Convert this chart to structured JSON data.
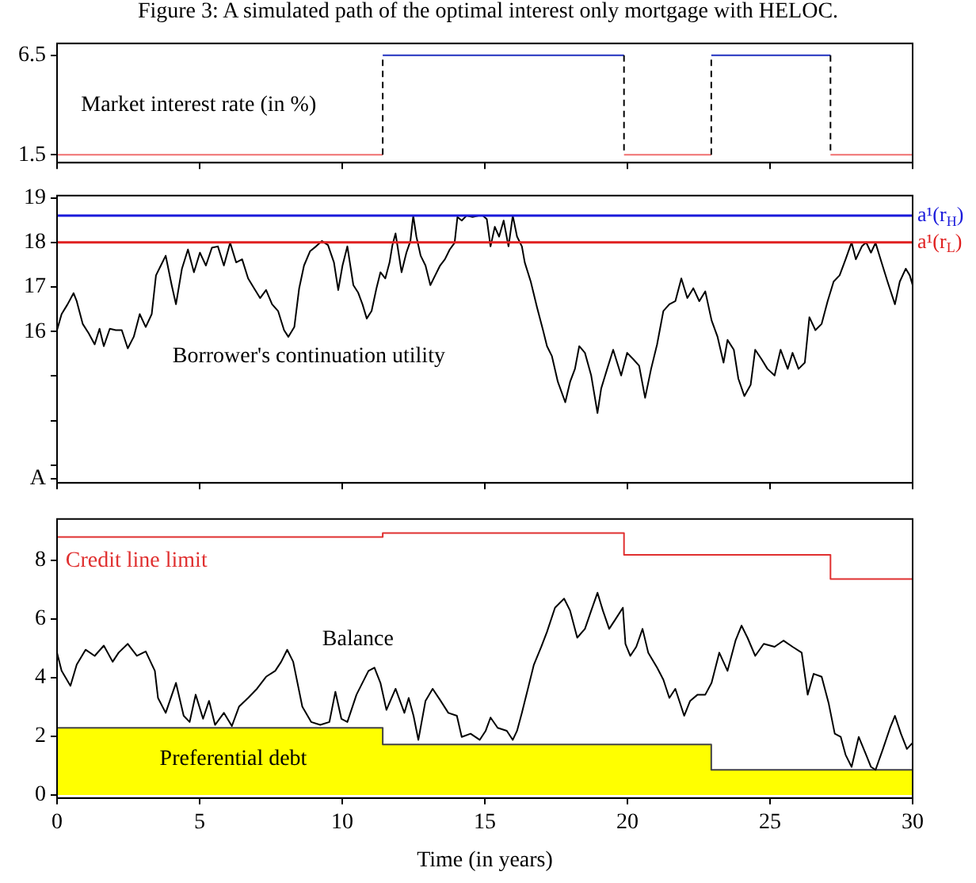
{
  "chart_data": [
    {
      "type": "line",
      "title": "Figure 3: A simulated path of the optimal interest only mortgage with HELOC.",
      "annotations": [
        "Market interest rate (in %)"
      ],
      "xlim": [
        0,
        30
      ],
      "xticks": [
        0,
        5,
        10,
        15,
        20,
        25,
        30
      ],
      "ylim": [
        1.1,
        7.1
      ],
      "yticks": [
        1.5,
        6.5
      ],
      "tick_labels": "y",
      "grid": false,
      "series": [
        {
          "color": "#f07070",
          "x": [
            0,
            11.42,
            15,
            19.88,
            22.94,
            25,
            27.12,
            30
          ],
          "values": [
            1.5,
            1.5,
            null,
            1.5,
            1.5,
            null,
            1.5,
            1.5
          ]
        },
        {
          "color": "#2030c0",
          "x": [
            11.42,
            19.88,
            21,
            22.94,
            27.12
          ],
          "values": [
            6.5,
            6.5,
            null,
            6.5,
            6.5
          ]
        },
        {
          "color": "#000000",
          "line_style": "dashed",
          "x": [
            11.42,
            11.42,
            15,
            19.88,
            19.88,
            21,
            22.94,
            22.94,
            25,
            27.12,
            27.12
          ],
          "values": [
            1.5,
            6.5,
            null,
            6.5,
            1.5,
            null,
            1.5,
            6.5,
            null,
            6.5,
            1.5
          ]
        }
      ]
    },
    {
      "type": "line",
      "xlim": [
        0,
        30
      ],
      "xticks": [
        0,
        5,
        10,
        15,
        20,
        25,
        30
      ],
      "ylim": [
        12.6,
        19.05
      ],
      "yticks": [
        {
          "value": 12.7,
          "label": "A"
        },
        {
          "value": 13,
          "label": null
        },
        {
          "value": 14,
          "label": null
        },
        {
          "value": 15,
          "label": null
        },
        16,
        17,
        18,
        19
      ],
      "tick_labels": "y",
      "grid": false,
      "ref_lines": [
        {
          "axis": "y",
          "value": 18.6,
          "label": "a¹(r$_{H}$)",
          "color": "#1a1adb"
        },
        {
          "axis": "y",
          "value": 18.0,
          "label": "a¹(r$_{L}$)",
          "color": "#e02020"
        }
      ],
      "series": [
        {
          "name": "Borrower's continuation utility",
          "color": "#000000",
          "x": [
            0,
            0.16,
            0.37,
            0.58,
            0.69,
            0.9,
            1.11,
            1.32,
            1.49,
            1.64,
            1.85,
            2.06,
            2.27,
            2.48,
            2.69,
            2.9,
            3.11,
            3.32,
            3.47,
            3.64,
            3.81,
            4.02,
            4.17,
            4.38,
            4.59,
            4.8,
            5.01,
            5.22,
            5.43,
            5.64,
            5.85,
            6.07,
            6.28,
            6.49,
            6.7,
            6.91,
            7.12,
            7.33,
            7.54,
            7.75,
            7.96,
            8.11,
            8.32,
            8.49,
            8.66,
            8.87,
            9.08,
            9.29,
            9.5,
            9.71,
            9.86,
            10.01,
            10.18,
            10.39,
            10.56,
            10.71,
            10.86,
            11.03,
            11.2,
            11.34,
            11.51,
            11.66,
            11.76,
            11.87,
            12.08,
            12.25,
            12.39,
            12.49,
            12.6,
            12.75,
            12.92,
            13.09,
            13.26,
            13.43,
            13.6,
            13.77,
            13.94,
            14.04,
            14.19,
            14.36,
            14.57,
            14.78,
            14.93,
            15.07,
            15.2,
            15.35,
            15.5,
            15.66,
            15.83,
            15.98,
            16.13,
            16.3,
            16.4,
            16.61,
            16.83,
            17.04,
            17.18,
            17.35,
            17.56,
            17.82,
            17.99,
            18.16,
            18.31,
            18.51,
            18.73,
            18.95,
            19.08,
            19.29,
            19.5,
            19.78,
            19.99,
            20.2,
            20.41,
            20.62,
            20.83,
            21.04,
            21.26,
            21.47,
            21.68,
            21.89,
            22.1,
            22.31,
            22.52,
            22.73,
            22.95,
            23.16,
            23.37,
            23.51,
            23.73,
            23.89,
            24.1,
            24.32,
            24.48,
            24.7,
            24.91,
            25.16,
            25.37,
            25.62,
            25.79,
            26.0,
            26.22,
            26.38,
            26.59,
            26.81,
            27.02,
            27.23,
            27.44,
            27.65,
            27.86,
            28.01,
            28.22,
            28.37,
            28.54,
            28.7,
            28.91,
            29.12,
            29.38,
            29.55,
            29.76,
            29.9,
            30
          ],
          "values": [
            16.03,
            16.39,
            16.61,
            16.86,
            16.68,
            16.17,
            15.96,
            15.71,
            16.06,
            15.67,
            16.06,
            16.03,
            16.03,
            15.62,
            15.88,
            16.39,
            16.1,
            16.39,
            17.26,
            17.48,
            17.7,
            17.04,
            16.61,
            17.41,
            17.84,
            17.33,
            17.77,
            17.48,
            17.88,
            17.91,
            17.48,
            17.99,
            17.55,
            17.62,
            17.19,
            16.97,
            16.75,
            16.93,
            16.61,
            16.46,
            16.03,
            15.88,
            16.1,
            16.97,
            17.48,
            17.8,
            17.91,
            18.03,
            17.94,
            17.55,
            16.93,
            17.48,
            17.91,
            17.04,
            16.87,
            16.61,
            16.29,
            16.46,
            16.97,
            17.33,
            17.19,
            17.55,
            17.94,
            18.2,
            17.33,
            17.77,
            18.03,
            18.6,
            18.13,
            17.7,
            17.48,
            17.04,
            17.26,
            17.48,
            17.62,
            17.84,
            17.99,
            18.57,
            18.49,
            18.6,
            18.57,
            18.6,
            18.6,
            18.52,
            17.91,
            18.35,
            18.13,
            18.49,
            17.91,
            18.6,
            18.13,
            17.91,
            17.55,
            17.12,
            16.54,
            16.03,
            15.67,
            15.45,
            14.87,
            14.41,
            14.87,
            15.16,
            15.67,
            15.52,
            15.01,
            14.17,
            14.72,
            15.16,
            15.59,
            15.01,
            15.52,
            15.38,
            15.23,
            14.51,
            15.16,
            15.71,
            16.46,
            16.61,
            16.68,
            17.19,
            16.75,
            16.97,
            16.68,
            16.9,
            16.25,
            15.88,
            15.3,
            15.81,
            15.59,
            14.94,
            14.55,
            14.8,
            15.59,
            15.38,
            15.16,
            15.01,
            15.59,
            15.16,
            15.52,
            15.16,
            15.3,
            16.32,
            16.03,
            16.17,
            16.68,
            17.12,
            17.26,
            17.62,
            18.0,
            17.62,
            17.91,
            18.0,
            17.77,
            17.99,
            17.55,
            17.12,
            16.61,
            17.12,
            17.41,
            17.26,
            17.04
          ]
        }
      ]
    },
    {
      "type": "line",
      "xlabel": "Time (in years)",
      "xlim": [
        0,
        30
      ],
      "xticks": [
        0,
        5,
        10,
        15,
        20,
        25,
        30
      ],
      "ylim": [
        -0.1,
        9.4
      ],
      "yticks": [
        0,
        2,
        4,
        6,
        8
      ],
      "grid": false,
      "series": [
        {
          "name": "Preferential debt",
          "type": "area",
          "color": "#ffff00",
          "x": [
            0,
            11.42,
            11.42,
            22.94,
            22.94,
            30
          ],
          "values": [
            2.29,
            2.29,
            1.72,
            1.72,
            0.86,
            0.86
          ]
        },
        {
          "name": "Credit line limit",
          "color": "#e03030",
          "x": [
            0,
            11.42,
            11.42,
            19.88,
            19.88,
            27.12,
            27.12,
            30
          ],
          "values": [
            8.79,
            8.79,
            8.92,
            8.92,
            8.18,
            8.18,
            7.36,
            7.36
          ]
        },
        {
          "name": "Balance",
          "color": "#000000",
          "x": [
            0,
            0.16,
            0.47,
            0.69,
            1.0,
            1.32,
            1.64,
            1.95,
            2.16,
            2.48,
            2.8,
            3.11,
            3.43,
            3.54,
            3.81,
            4.17,
            4.44,
            4.65,
            4.86,
            5.12,
            5.33,
            5.54,
            5.85,
            6.13,
            6.38,
            6.7,
            7.01,
            7.33,
            7.65,
            7.86,
            8.07,
            8.28,
            8.6,
            8.91,
            9.23,
            9.55,
            9.76,
            9.97,
            10.18,
            10.5,
            10.92,
            11.13,
            11.34,
            11.55,
            11.87,
            12.18,
            12.33,
            12.5,
            12.67,
            12.92,
            13.17,
            13.45,
            13.72,
            14.02,
            14.19,
            14.5,
            14.82,
            15.03,
            15.2,
            15.45,
            15.77,
            15.98,
            16.13,
            16.3,
            16.51,
            16.72,
            16.98,
            17.18,
            17.46,
            17.78,
            17.99,
            18.24,
            18.51,
            18.73,
            18.95,
            19.14,
            19.36,
            19.57,
            19.84,
            19.93,
            20.1,
            20.31,
            20.53,
            20.73,
            21.04,
            21.26,
            21.47,
            21.68,
            21.99,
            22.2,
            22.46,
            22.73,
            22.95,
            23.22,
            23.51,
            23.79,
            24.0,
            24.21,
            24.48,
            24.78,
            25.16,
            25.47,
            25.79,
            26.11,
            26.32,
            26.53,
            26.81,
            27.06,
            27.27,
            27.48,
            27.65,
            27.86,
            28.11,
            28.37,
            28.54,
            28.7,
            28.96,
            29.21,
            29.38,
            29.59,
            29.8,
            30
          ],
          "values": [
            4.85,
            4.23,
            3.72,
            4.44,
            4.95,
            4.74,
            5.09,
            4.54,
            4.85,
            5.15,
            4.74,
            4.89,
            4.23,
            3.31,
            2.8,
            3.82,
            2.7,
            2.49,
            3.42,
            2.6,
            3.21,
            2.39,
            2.8,
            2.35,
            3.01,
            3.31,
            3.62,
            4.03,
            4.23,
            4.54,
            4.95,
            4.54,
            3.01,
            2.49,
            2.39,
            2.49,
            3.52,
            2.6,
            2.49,
            3.42,
            4.23,
            4.34,
            3.82,
            2.9,
            3.62,
            2.8,
            3.31,
            2.7,
            1.88,
            3.21,
            3.62,
            3.21,
            2.8,
            2.7,
            1.98,
            2.09,
            1.88,
            2.19,
            2.64,
            2.29,
            2.19,
            1.88,
            2.19,
            2.8,
            3.62,
            4.44,
            5.05,
            5.56,
            6.38,
            6.69,
            6.28,
            5.36,
            5.66,
            6.28,
            6.89,
            6.28,
            5.66,
            5.97,
            6.38,
            5.15,
            4.74,
            5.05,
            5.66,
            4.85,
            4.34,
            3.93,
            3.31,
            3.62,
            2.7,
            3.21,
            3.42,
            3.42,
            3.82,
            4.85,
            4.23,
            5.26,
            5.77,
            5.36,
            4.74,
            5.15,
            5.05,
            5.26,
            5.05,
            4.85,
            3.42,
            4.13,
            4.03,
            3.11,
            2.09,
            1.98,
            1.37,
            0.96,
            1.98,
            1.37,
            0.96,
            0.86,
            1.57,
            2.29,
            2.7,
            2.09,
            1.57,
            1.78
          ]
        }
      ]
    }
  ]
}
